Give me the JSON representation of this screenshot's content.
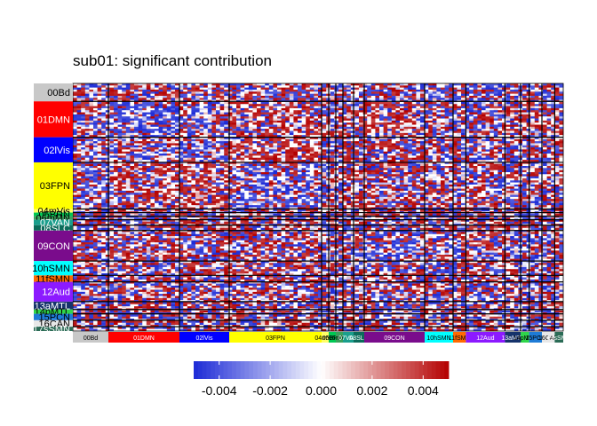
{
  "chart_data": {
    "type": "heatmap",
    "title": "sub01: significant contribution",
    "xlabel": "",
    "ylabel": "",
    "networks": [
      {
        "label": "00Bd",
        "color": "#c8c8c8",
        "text_color": "#000000",
        "weight": 5
      },
      {
        "label": "01DMN",
        "color": "#ff0000",
        "text_color": "#ffffff",
        "weight": 10
      },
      {
        "label": "02lVis",
        "color": "#0000ff",
        "text_color": "#ffffff",
        "weight": 7
      },
      {
        "label": "03FPN",
        "color": "#ffff00",
        "text_color": "#000000",
        "weight": 13
      },
      {
        "label": "04mVis",
        "color": "#ffff66",
        "text_color": "#000000",
        "weight": 1
      },
      {
        "label": "05BRN",
        "color": "#00c853",
        "text_color": "#000000",
        "weight": 1
      },
      {
        "label": "06mMN",
        "color": "#3aa05a",
        "text_color": "#000000",
        "weight": 1
      },
      {
        "label": "07VAN",
        "color": "#1a9e8c",
        "text_color": "#ffffff",
        "weight": 1.5
      },
      {
        "label": "08SLC",
        "color": "#0b6b5a",
        "text_color": "#ffffff",
        "weight": 1.5
      },
      {
        "label": "09CON",
        "color": "#7a0c8c",
        "text_color": "#ffffff",
        "weight": 8.5
      },
      {
        "label": "10hSMN",
        "color": "#00ffff",
        "text_color": "#000000",
        "weight": 4
      },
      {
        "label": "11fSMN",
        "color": "#ff6a00",
        "text_color": "#000000",
        "weight": 1.8
      },
      {
        "label": "12Aud",
        "color": "#8c1aff",
        "text_color": "#ffffff",
        "weight": 5.5
      },
      {
        "label": "13aMTL",
        "color": "#16336b",
        "text_color": "#ffffff",
        "weight": 2.2
      },
      {
        "label": "14pMTL",
        "color": "#2fd64a",
        "text_color": "#000000",
        "weight": 1.2
      },
      {
        "label": "15PCN",
        "color": "#1e7bd6",
        "text_color": "#000000",
        "weight": 1.8
      },
      {
        "label": "16CAN",
        "color": "#e8e8e8",
        "text_color": "#000000",
        "weight": 1.8
      },
      {
        "label": "17sSMN",
        "color": "#2a6b55",
        "text_color": "#ffffff",
        "weight": 1.2
      }
    ],
    "block_means": [
      [
        0.0,
        0.0,
        0.2,
        -0.1,
        0.0,
        0.0,
        0.0,
        0.0,
        0.0,
        0.0,
        0.1,
        0.0,
        -0.1,
        0.0,
        0.0,
        0.0,
        0.0,
        0.0
      ],
      [
        0.0,
        -0.5,
        -0.1,
        0.3,
        0.1,
        -0.1,
        0.0,
        -0.1,
        0.1,
        0.3,
        0.0,
        0.0,
        0.0,
        0.1,
        0.0,
        0.0,
        0.0,
        0.0
      ],
      [
        0.2,
        -0.1,
        -0.3,
        0.6,
        0.1,
        0.0,
        0.1,
        0.2,
        0.0,
        0.0,
        0.2,
        0.0,
        -0.1,
        0.0,
        0.0,
        0.0,
        0.0,
        0.0
      ],
      [
        -0.1,
        0.3,
        0.6,
        -0.3,
        0.0,
        0.0,
        -0.1,
        0.1,
        0.2,
        0.2,
        0.2,
        0.0,
        0.1,
        0.0,
        0.0,
        0.0,
        0.0,
        0.0
      ],
      [
        0.0,
        0.1,
        0.1,
        0.0,
        0.0,
        0.0,
        0.0,
        0.0,
        0.0,
        0.0,
        0.0,
        0.0,
        0.0,
        0.0,
        0.0,
        0.0,
        0.0,
        0.0
      ],
      [
        0.0,
        -0.1,
        0.0,
        0.0,
        0.0,
        0.0,
        0.0,
        0.0,
        0.0,
        0.0,
        0.0,
        0.0,
        0.0,
        0.0,
        0.0,
        0.0,
        0.0,
        0.0
      ],
      [
        0.0,
        0.0,
        0.1,
        -0.1,
        0.0,
        0.0,
        0.0,
        0.0,
        0.0,
        0.0,
        0.0,
        0.0,
        0.0,
        0.0,
        0.0,
        0.0,
        0.0,
        0.0
      ],
      [
        0.0,
        -0.1,
        0.2,
        0.1,
        0.0,
        0.0,
        0.0,
        0.0,
        0.0,
        0.0,
        0.0,
        0.0,
        0.0,
        0.0,
        0.0,
        0.0,
        0.0,
        0.0
      ],
      [
        0.0,
        0.1,
        0.0,
        0.2,
        0.0,
        0.0,
        0.0,
        0.0,
        0.0,
        0.0,
        0.0,
        0.0,
        0.0,
        0.0,
        0.0,
        0.0,
        0.0,
        0.0
      ],
      [
        0.0,
        0.3,
        0.0,
        0.2,
        0.0,
        0.0,
        0.0,
        0.0,
        0.0,
        -0.4,
        0.1,
        0.0,
        0.1,
        0.0,
        0.0,
        0.0,
        0.0,
        0.0
      ],
      [
        0.1,
        0.0,
        0.2,
        0.2,
        0.0,
        0.0,
        0.0,
        0.0,
        0.0,
        0.1,
        -0.2,
        0.0,
        0.2,
        0.0,
        0.0,
        0.0,
        0.0,
        0.0
      ],
      [
        0.0,
        0.0,
        0.0,
        0.0,
        0.0,
        0.0,
        0.0,
        0.0,
        0.0,
        0.0,
        0.0,
        0.0,
        0.0,
        0.0,
        0.0,
        0.0,
        0.0,
        0.0
      ],
      [
        -0.1,
        0.0,
        -0.1,
        0.1,
        0.0,
        0.0,
        0.0,
        0.0,
        0.0,
        0.1,
        0.2,
        0.0,
        -0.2,
        0.0,
        0.0,
        0.0,
        0.0,
        0.0
      ],
      [
        0.0,
        0.1,
        0.0,
        0.0,
        0.0,
        0.0,
        0.0,
        0.0,
        0.0,
        0.0,
        0.0,
        0.0,
        0.0,
        0.0,
        0.0,
        0.0,
        0.0,
        0.0
      ],
      [
        0.0,
        0.0,
        0.0,
        0.0,
        0.0,
        0.0,
        0.0,
        0.0,
        0.0,
        0.0,
        0.0,
        0.0,
        0.0,
        0.0,
        0.0,
        0.0,
        0.0,
        0.0
      ],
      [
        0.0,
        0.0,
        0.0,
        0.0,
        0.0,
        0.0,
        0.0,
        0.0,
        0.0,
        0.0,
        0.0,
        0.0,
        0.0,
        0.0,
        0.0,
        0.0,
        0.0,
        0.0
      ],
      [
        0.0,
        0.0,
        0.0,
        0.0,
        0.0,
        0.0,
        0.0,
        0.0,
        0.0,
        0.0,
        0.0,
        0.0,
        0.0,
        0.0,
        0.0,
        0.0,
        0.0,
        0.0
      ],
      [
        0.0,
        0.0,
        0.0,
        0.0,
        0.0,
        0.0,
        0.0,
        0.0,
        0.0,
        0.0,
        0.0,
        0.0,
        0.0,
        0.0,
        0.0,
        0.0,
        0.0,
        0.0
      ]
    ],
    "colorbar": {
      "min": -0.005,
      "max": 0.005,
      "ticks": [
        -0.004,
        -0.002,
        0.0,
        0.002,
        0.004
      ],
      "tick_labels": [
        "-0.004",
        "-0.002",
        "0.000",
        "0.002",
        "0.004"
      ],
      "low_color": "#1c2ad6",
      "mid_color": "#ffffff",
      "high_color": "#b40000"
    },
    "legend_position": "bottom"
  }
}
